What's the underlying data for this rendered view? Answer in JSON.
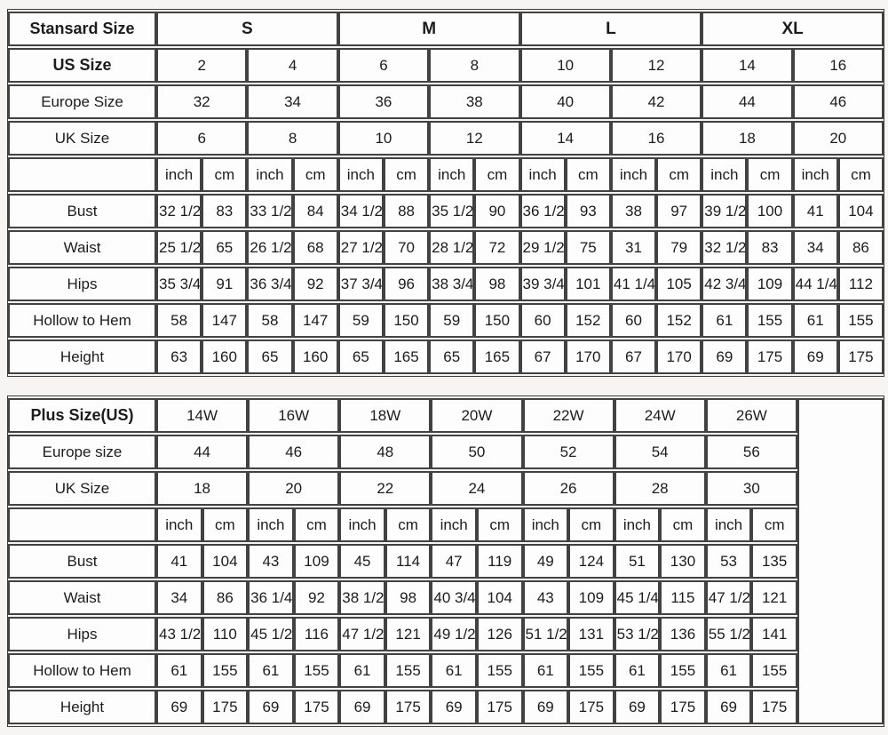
{
  "page": {
    "background": "#f6f5f4",
    "border_color": "#424242",
    "cell_background": "#fdfdfd",
    "text_color": "#1c1c1c"
  },
  "chart_data": [
    {
      "type": "table",
      "name": "standard-size-chart",
      "title": "Stansard Size",
      "legend_units": [
        "inch",
        "cm"
      ],
      "total_data_columns": 16,
      "rows": [
        {
          "label": "Stansard Size",
          "label_bold": true,
          "bold": true,
          "span": 4,
          "cells": [
            "S",
            "M",
            "L",
            "XL"
          ]
        },
        {
          "label": "US Size",
          "label_bold": true,
          "span": 2,
          "cells": [
            "2",
            "4",
            "6",
            "8",
            "10",
            "12",
            "14",
            "16"
          ]
        },
        {
          "label": "Europe Size",
          "span": 2,
          "cells": [
            "32",
            "34",
            "36",
            "38",
            "40",
            "42",
            "44",
            "46"
          ]
        },
        {
          "label": "UK Size",
          "span": 2,
          "cells": [
            "6",
            "8",
            "10",
            "12",
            "14",
            "16",
            "18",
            "20"
          ]
        },
        {
          "label": "",
          "span": 1,
          "cells": [
            "inch",
            "cm",
            "inch",
            "cm",
            "inch",
            "cm",
            "inch",
            "cm",
            "inch",
            "cm",
            "inch",
            "cm",
            "inch",
            "cm",
            "inch",
            "cm"
          ]
        },
        {
          "label": "Bust",
          "span": 1,
          "cells": [
            "32 1/2",
            "83",
            "33 1/2",
            "84",
            "34 1/2",
            "88",
            "35 1/2",
            "90",
            "36 1/2",
            "93",
            "38",
            "97",
            "39 1/2",
            "100",
            "41",
            "104"
          ]
        },
        {
          "label": "Waist",
          "span": 1,
          "cells": [
            "25 1/2",
            "65",
            "26 1/2",
            "68",
            "27 1/2",
            "70",
            "28 1/2",
            "72",
            "29 1/2",
            "75",
            "31",
            "79",
            "32 1/2",
            "83",
            "34",
            "86"
          ]
        },
        {
          "label": "Hips",
          "span": 1,
          "cells": [
            "35 3/4",
            "91",
            "36 3/4",
            "92",
            "37 3/4",
            "96",
            "38 3/4",
            "98",
            "39 3/4",
            "101",
            "41 1/4",
            "105",
            "42 3/4",
            "109",
            "44 1/4",
            "112"
          ]
        },
        {
          "label": "Hollow to Hem",
          "span": 1,
          "cells": [
            "58",
            "147",
            "58",
            "147",
            "59",
            "150",
            "59",
            "150",
            "60",
            "152",
            "60",
            "152",
            "61",
            "155",
            "61",
            "155"
          ]
        },
        {
          "label": "Height",
          "span": 1,
          "cells": [
            "63",
            "160",
            "65",
            "160",
            "65",
            "165",
            "65",
            "165",
            "67",
            "170",
            "67",
            "170",
            "69",
            "175",
            "69",
            "175"
          ]
        }
      ]
    },
    {
      "type": "table",
      "name": "plus-size-chart",
      "title": "Plus Size(US)",
      "legend_units": [
        "inch",
        "cm"
      ],
      "total_data_columns": 14,
      "empty_right_column": true,
      "rows": [
        {
          "label": "Plus Size(US)",
          "label_bold": true,
          "span": 2,
          "cells": [
            "14W",
            "16W",
            "18W",
            "20W",
            "22W",
            "24W",
            "26W"
          ]
        },
        {
          "label": "Europe size",
          "span": 2,
          "cells": [
            "44",
            "46",
            "48",
            "50",
            "52",
            "54",
            "56"
          ]
        },
        {
          "label": "UK Size",
          "span": 2,
          "cells": [
            "18",
            "20",
            "22",
            "24",
            "26",
            "28",
            "30"
          ]
        },
        {
          "label": "",
          "span": 1,
          "cells": [
            "inch",
            "cm",
            "inch",
            "cm",
            "inch",
            "cm",
            "inch",
            "cm",
            "inch",
            "cm",
            "inch",
            "cm",
            "inch",
            "cm"
          ]
        },
        {
          "label": "Bust",
          "span": 1,
          "cells": [
            "41",
            "104",
            "43",
            "109",
            "45",
            "114",
            "47",
            "119",
            "49",
            "124",
            "51",
            "130",
            "53",
            "135"
          ]
        },
        {
          "label": "Waist",
          "span": 1,
          "cells": [
            "34",
            "86",
            "36 1/4",
            "92",
            "38 1/2",
            "98",
            "40 3/4",
            "104",
            "43",
            "109",
            "45 1/4",
            "115",
            "47 1/2",
            "121"
          ]
        },
        {
          "label": "Hips",
          "span": 1,
          "cells": [
            "43 1/2",
            "110",
            "45 1/2",
            "116",
            "47 1/2",
            "121",
            "49 1/2",
            "126",
            "51 1/2",
            "131",
            "53 1/2",
            "136",
            "55 1/2",
            "141"
          ]
        },
        {
          "label": "Hollow to Hem",
          "span": 1,
          "cells": [
            "61",
            "155",
            "61",
            "155",
            "61",
            "155",
            "61",
            "155",
            "61",
            "155",
            "61",
            "155",
            "61",
            "155"
          ]
        },
        {
          "label": "Height",
          "span": 1,
          "cells": [
            "69",
            "175",
            "69",
            "175",
            "69",
            "175",
            "69",
            "175",
            "69",
            "175",
            "69",
            "175",
            "69",
            "175"
          ]
        }
      ]
    }
  ]
}
